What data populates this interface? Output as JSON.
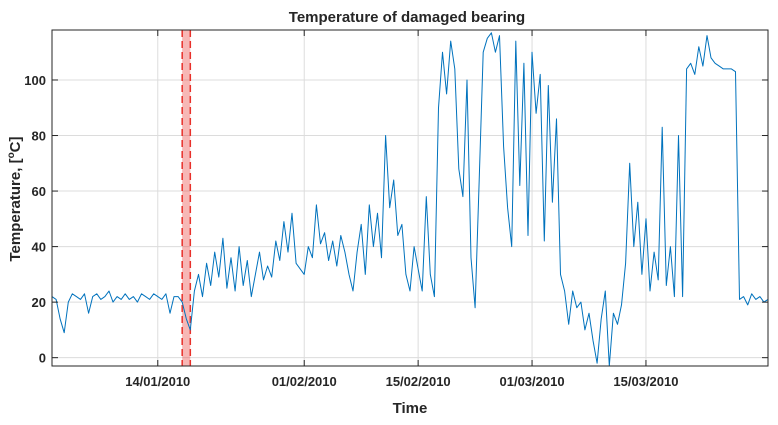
{
  "chart_data": {
    "type": "line",
    "title": "Temperature of damaged bearing",
    "xlabel": "Time",
    "ylabel_main": "Temperature, [",
    "ylabel_sup": "o",
    "ylabel_tail": "C]",
    "x_range": [
      "2010-01-01",
      "2010-03-30"
    ],
    "ylim": [
      -3,
      118
    ],
    "x_ticks": [
      {
        "date": "2010-01-14",
        "label": "14/01/2010"
      },
      {
        "date": "2010-02-01",
        "label": "01/02/2010"
      },
      {
        "date": "2010-02-15",
        "label": "15/02/2010"
      },
      {
        "date": "2010-03-01",
        "label": "01/03/2010"
      },
      {
        "date": "2010-03-15",
        "label": "15/03/2010"
      }
    ],
    "y_ticks": [
      0,
      20,
      40,
      60,
      80,
      100
    ],
    "grid": true,
    "highlight": {
      "start": "2010-01-17",
      "end": "2010-01-18",
      "color": "#e8302a"
    },
    "series": [
      {
        "color": "#0072bd",
        "points": [
          [
            "2010-01-01",
            22
          ],
          [
            "2010-01-01 12:00",
            21
          ],
          [
            "2010-01-02",
            14
          ],
          [
            "2010-01-02 12:00",
            9
          ],
          [
            "2010-01-03",
            20
          ],
          [
            "2010-01-03 12:00",
            23
          ],
          [
            "2010-01-04",
            22
          ],
          [
            "2010-01-04 12:00",
            21
          ],
          [
            "2010-01-05",
            23
          ],
          [
            "2010-01-05 12:00",
            16
          ],
          [
            "2010-01-06",
            22
          ],
          [
            "2010-01-06 12:00",
            23
          ],
          [
            "2010-01-07",
            21
          ],
          [
            "2010-01-07 12:00",
            22
          ],
          [
            "2010-01-08",
            24
          ],
          [
            "2010-01-08 12:00",
            20
          ],
          [
            "2010-01-09",
            22
          ],
          [
            "2010-01-09 12:00",
            21
          ],
          [
            "2010-01-10",
            23
          ],
          [
            "2010-01-10 12:00",
            21
          ],
          [
            "2010-01-11",
            22
          ],
          [
            "2010-01-11 12:00",
            20
          ],
          [
            "2010-01-12",
            23
          ],
          [
            "2010-01-12 12:00",
            22
          ],
          [
            "2010-01-13",
            21
          ],
          [
            "2010-01-13 12:00",
            23
          ],
          [
            "2010-01-14",
            22
          ],
          [
            "2010-01-14 12:00",
            21
          ],
          [
            "2010-01-15",
            23
          ],
          [
            "2010-01-15 12:00",
            16
          ],
          [
            "2010-01-16",
            22
          ],
          [
            "2010-01-16 12:00",
            22
          ],
          [
            "2010-01-17",
            20
          ],
          [
            "2010-01-17 12:00",
            14
          ],
          [
            "2010-01-18",
            10
          ],
          [
            "2010-01-18 12:00",
            24
          ],
          [
            "2010-01-19",
            30
          ],
          [
            "2010-01-19 12:00",
            22
          ],
          [
            "2010-01-20",
            34
          ],
          [
            "2010-01-20 12:00",
            26
          ],
          [
            "2010-01-21",
            38
          ],
          [
            "2010-01-21 12:00",
            29
          ],
          [
            "2010-01-22",
            43
          ],
          [
            "2010-01-22 12:00",
            25
          ],
          [
            "2010-01-23",
            36
          ],
          [
            "2010-01-23 12:00",
            24
          ],
          [
            "2010-01-24",
            40
          ],
          [
            "2010-01-24 12:00",
            26
          ],
          [
            "2010-01-25",
            35
          ],
          [
            "2010-01-25 12:00",
            22
          ],
          [
            "2010-01-26",
            30
          ],
          [
            "2010-01-26 12:00",
            38
          ],
          [
            "2010-01-27",
            28
          ],
          [
            "2010-01-27 12:00",
            33
          ],
          [
            "2010-01-28",
            29
          ],
          [
            "2010-01-28 12:00",
            42
          ],
          [
            "2010-01-29",
            35
          ],
          [
            "2010-01-29 12:00",
            49
          ],
          [
            "2010-01-30",
            38
          ],
          [
            "2010-01-30 12:00",
            52
          ],
          [
            "2010-01-31",
            34
          ],
          [
            "2010-02-01",
            30
          ],
          [
            "2010-02-01 12:00",
            40
          ],
          [
            "2010-02-02",
            36
          ],
          [
            "2010-02-02 12:00",
            55
          ],
          [
            "2010-02-03",
            41
          ],
          [
            "2010-02-03 12:00",
            45
          ],
          [
            "2010-02-04",
            35
          ],
          [
            "2010-02-04 12:00",
            42
          ],
          [
            "2010-02-05",
            33
          ],
          [
            "2010-02-05 12:00",
            44
          ],
          [
            "2010-02-06",
            38
          ],
          [
            "2010-02-06 12:00",
            30
          ],
          [
            "2010-02-07",
            24
          ],
          [
            "2010-02-07 12:00",
            38
          ],
          [
            "2010-02-08",
            48
          ],
          [
            "2010-02-08 12:00",
            30
          ],
          [
            "2010-02-09",
            55
          ],
          [
            "2010-02-09 12:00",
            40
          ],
          [
            "2010-02-10",
            52
          ],
          [
            "2010-02-10 12:00",
            36
          ],
          [
            "2010-02-11",
            80
          ],
          [
            "2010-02-11 12:00",
            54
          ],
          [
            "2010-02-12",
            64
          ],
          [
            "2010-02-12 12:00",
            44
          ],
          [
            "2010-02-13",
            48
          ],
          [
            "2010-02-13 12:00",
            30
          ],
          [
            "2010-02-14",
            24
          ],
          [
            "2010-02-14 12:00",
            40
          ],
          [
            "2010-02-15",
            32
          ],
          [
            "2010-02-15 12:00",
            24
          ],
          [
            "2010-02-16",
            58
          ],
          [
            "2010-02-16 12:00",
            30
          ],
          [
            "2010-02-17",
            22
          ],
          [
            "2010-02-17 12:00",
            90
          ],
          [
            "2010-02-18",
            110
          ],
          [
            "2010-02-18 12:00",
            95
          ],
          [
            "2010-02-19",
            114
          ],
          [
            "2010-02-19 12:00",
            104
          ],
          [
            "2010-02-20",
            68
          ],
          [
            "2010-02-20 12:00",
            58
          ],
          [
            "2010-02-21",
            100
          ],
          [
            "2010-02-21 12:00",
            36
          ],
          [
            "2010-02-22",
            18
          ],
          [
            "2010-02-22 12:00",
            64
          ],
          [
            "2010-02-23",
            110
          ],
          [
            "2010-02-23 12:00",
            115
          ],
          [
            "2010-02-24",
            117
          ],
          [
            "2010-02-24 12:00",
            110
          ],
          [
            "2010-02-25",
            116
          ],
          [
            "2010-02-25 12:00",
            76
          ],
          [
            "2010-02-26",
            54
          ],
          [
            "2010-02-26 12:00",
            40
          ],
          [
            "2010-02-27",
            114
          ],
          [
            "2010-02-27 12:00",
            62
          ],
          [
            "2010-02-28",
            106
          ],
          [
            "2010-02-28 12:00",
            44
          ],
          [
            "2010-03-01",
            110
          ],
          [
            "2010-03-01 12:00",
            88
          ],
          [
            "2010-03-02",
            102
          ],
          [
            "2010-03-02 12:00",
            42
          ],
          [
            "2010-03-03",
            98
          ],
          [
            "2010-03-03 12:00",
            56
          ],
          [
            "2010-03-04",
            86
          ],
          [
            "2010-03-04 12:00",
            30
          ],
          [
            "2010-03-05",
            24
          ],
          [
            "2010-03-05 12:00",
            12
          ],
          [
            "2010-03-06",
            24
          ],
          [
            "2010-03-06 12:00",
            18
          ],
          [
            "2010-03-07",
            20
          ],
          [
            "2010-03-07 12:00",
            10
          ],
          [
            "2010-03-08",
            16
          ],
          [
            "2010-03-08 12:00",
            6
          ],
          [
            "2010-03-09",
            -2
          ],
          [
            "2010-03-09 12:00",
            14
          ],
          [
            "2010-03-10",
            24
          ],
          [
            "2010-03-10 12:00",
            -3
          ],
          [
            "2010-03-11",
            16
          ],
          [
            "2010-03-11 12:00",
            12
          ],
          [
            "2010-03-12",
            19
          ],
          [
            "2010-03-12 12:00",
            34
          ],
          [
            "2010-03-13",
            70
          ],
          [
            "2010-03-13 12:00",
            40
          ],
          [
            "2010-03-14",
            56
          ],
          [
            "2010-03-14 12:00",
            30
          ],
          [
            "2010-03-15",
            50
          ],
          [
            "2010-03-15 12:00",
            24
          ],
          [
            "2010-03-16",
            38
          ],
          [
            "2010-03-16 12:00",
            28
          ],
          [
            "2010-03-17",
            83
          ],
          [
            "2010-03-17 12:00",
            26
          ],
          [
            "2010-03-18",
            40
          ],
          [
            "2010-03-18 12:00",
            22
          ],
          [
            "2010-03-19",
            80
          ],
          [
            "2010-03-19 12:00",
            22
          ],
          [
            "2010-03-20",
            104
          ],
          [
            "2010-03-20 12:00",
            106
          ],
          [
            "2010-03-21",
            102
          ],
          [
            "2010-03-21 12:00",
            112
          ],
          [
            "2010-03-22",
            105
          ],
          [
            "2010-03-22 12:00",
            116
          ],
          [
            "2010-03-23",
            108
          ],
          [
            "2010-03-23 12:00",
            106
          ],
          [
            "2010-03-24",
            105
          ],
          [
            "2010-03-24 12:00",
            104
          ],
          [
            "2010-03-25",
            104
          ],
          [
            "2010-03-25 12:00",
            104
          ],
          [
            "2010-03-26",
            103
          ],
          [
            "2010-03-26 12:00",
            21
          ],
          [
            "2010-03-27",
            22
          ],
          [
            "2010-03-27 12:00",
            19
          ],
          [
            "2010-03-28",
            23
          ],
          [
            "2010-03-28 12:00",
            21
          ],
          [
            "2010-03-29",
            22
          ],
          [
            "2010-03-29 12:00",
            20
          ],
          [
            "2010-03-30",
            21
          ]
        ]
      }
    ]
  }
}
